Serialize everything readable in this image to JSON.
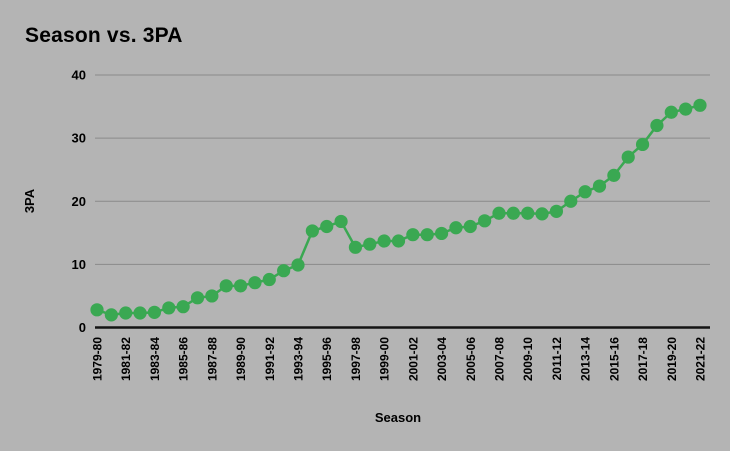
{
  "page": {
    "background": "#b4b4b4"
  },
  "chart_data": {
    "type": "line",
    "title": "Season vs. 3PA",
    "xlabel": "Season",
    "ylabel": "3PA",
    "legend": "none",
    "grid": "horizontal",
    "marker": "circle",
    "ylim": [
      0,
      40
    ],
    "yticks": [
      0,
      10,
      20,
      30,
      40
    ],
    "x": [
      "1979-80",
      "1980-81",
      "1981-82",
      "1982-83",
      "1983-84",
      "1984-85",
      "1985-86",
      "1986-87",
      "1987-88",
      "1988-89",
      "1989-90",
      "1990-91",
      "1991-92",
      "1992-93",
      "1993-94",
      "1994-95",
      "1995-96",
      "1996-97",
      "1997-98",
      "1998-99",
      "1999-00",
      "2000-01",
      "2001-02",
      "2002-03",
      "2003-04",
      "2004-05",
      "2005-06",
      "2006-07",
      "2007-08",
      "2008-09",
      "2009-10",
      "2010-11",
      "2011-12",
      "2012-13",
      "2013-14",
      "2014-15",
      "2015-16",
      "2016-17",
      "2017-18",
      "2018-19",
      "2019-20",
      "2020-21",
      "2021-22"
    ],
    "values": [
      2.8,
      2.0,
      2.3,
      2.3,
      2.4,
      3.1,
      3.3,
      4.7,
      5.0,
      6.6,
      6.6,
      7.1,
      7.6,
      9.0,
      9.9,
      15.3,
      16.0,
      16.8,
      12.7,
      13.2,
      13.7,
      13.7,
      14.7,
      14.7,
      14.9,
      15.8,
      16.0,
      16.9,
      18.1,
      18.1,
      18.1,
      18.0,
      18.4,
      20.0,
      21.5,
      22.4,
      24.1,
      27.0,
      29.0,
      32.0,
      34.1,
      34.6,
      35.2
    ],
    "x_tick_labels": [
      "1979-80",
      "1981-82",
      "1983-84",
      "1985-86",
      "1987-88",
      "1989-90",
      "1991-92",
      "1993-94",
      "1995-96",
      "1997-98",
      "1999-00",
      "2001-02",
      "2003-04",
      "2005-06",
      "2007-08",
      "2009-10",
      "2011-12",
      "2013-14",
      "2015-16",
      "2017-18",
      "2019-20",
      "2021-22"
    ],
    "x_tick_step": 2,
    "colors": {
      "series": "#3aa852",
      "gridline": "#8a8a8a",
      "baseline": "#141414",
      "text": "#000000",
      "background": "#b4b4b4"
    }
  }
}
